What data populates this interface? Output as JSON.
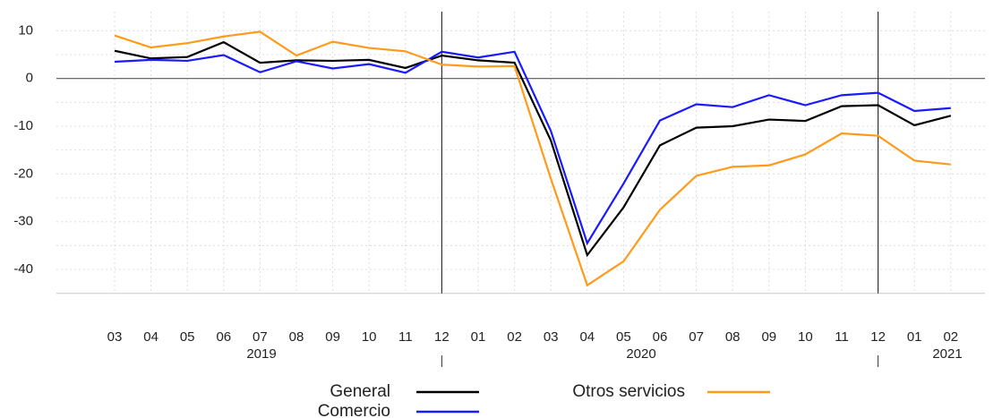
{
  "chart_data": {
    "type": "line",
    "categories": [
      "03",
      "04",
      "05",
      "06",
      "07",
      "08",
      "09",
      "10",
      "11",
      "12",
      "01",
      "02",
      "03",
      "04",
      "05",
      "06",
      "07",
      "08",
      "09",
      "10",
      "11",
      "12",
      "01",
      "02"
    ],
    "x_groups": [
      "2019",
      "2020",
      "2021"
    ],
    "series": [
      {
        "name": "General",
        "color": "#000000",
        "values": [
          5.8,
          4.2,
          4.5,
          7.6,
          3.3,
          3.8,
          3.7,
          3.9,
          2.2,
          4.8,
          3.8,
          3.3,
          -13,
          -37,
          -27,
          -14,
          -10.3,
          -10,
          -8.6,
          -8.9,
          -5.8,
          -5.6,
          -9.8,
          -7.8
        ]
      },
      {
        "name": "Comercio",
        "color": "#1a1aff",
        "values": [
          3.5,
          3.9,
          3.7,
          4.9,
          1.3,
          3.6,
          2.1,
          3,
          1.2,
          5.6,
          4.4,
          5.6,
          -11,
          -34.5,
          -22,
          -8.8,
          -5.4,
          -6,
          -3.5,
          -5.6,
          -3.5,
          -3,
          -6.8,
          -6.2
        ]
      },
      {
        "name": "Otros servicios",
        "color": "#ff9a1a",
        "values": [
          9,
          6.5,
          7.4,
          8.8,
          9.8,
          4.8,
          7.7,
          6.4,
          5.7,
          2.9,
          2.5,
          2.6,
          -21,
          -43.3,
          -38.3,
          -27.5,
          -20.4,
          -18.5,
          -18.2,
          -15.9,
          -11.5,
          -12,
          -17.2,
          -18
        ]
      }
    ],
    "ylim": [
      -45,
      14
    ],
    "yticks": [
      -40,
      -30,
      -20,
      -10,
      0,
      10
    ],
    "grid": true
  }
}
